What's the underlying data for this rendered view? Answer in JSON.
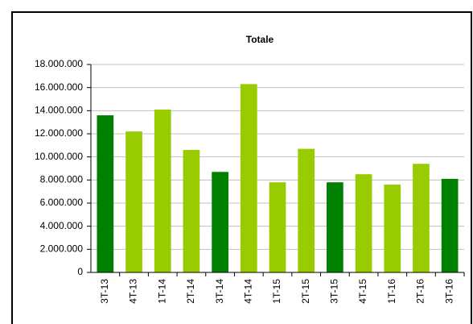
{
  "chart_data": {
    "type": "bar",
    "title": "Totale",
    "categories": [
      "3T-13",
      "4T-13",
      "1T-14",
      "2T-14",
      "3T-14",
      "4T-14",
      "1T-15",
      "2T-15",
      "3T-15",
      "4T-15",
      "1T-16",
      "2T-16",
      "3T-16"
    ],
    "values": [
      13600000,
      12200000,
      14100000,
      10600000,
      8700000,
      16300000,
      7800000,
      10700000,
      7800000,
      8500000,
      7600000,
      9400000,
      8100000
    ],
    "colors": [
      "#008000",
      "#99cc00",
      "#99cc00",
      "#99cc00",
      "#008000",
      "#99cc00",
      "#99cc00",
      "#99cc00",
      "#008000",
      "#99cc00",
      "#99cc00",
      "#99cc00",
      "#008000"
    ],
    "ylim": [
      0,
      18000000
    ],
    "yticks": [
      0,
      {
        "value": 2000000,
        "label": "2.000.000"
      },
      {
        "value": 4000000,
        "label": "4.000.000"
      },
      {
        "value": 6000000,
        "label": "6.000.000"
      },
      {
        "value": 8000000,
        "label": "8.000.000"
      },
      {
        "value": 10000000,
        "label": "10.000.000"
      },
      {
        "value": 12000000,
        "label": "12.000.000"
      },
      {
        "value": 14000000,
        "label": "14.000.000"
      },
      {
        "value": 16000000,
        "label": "16.000.000"
      },
      {
        "value": 18000000,
        "label": "18.000.000"
      }
    ],
    "grid": true
  }
}
